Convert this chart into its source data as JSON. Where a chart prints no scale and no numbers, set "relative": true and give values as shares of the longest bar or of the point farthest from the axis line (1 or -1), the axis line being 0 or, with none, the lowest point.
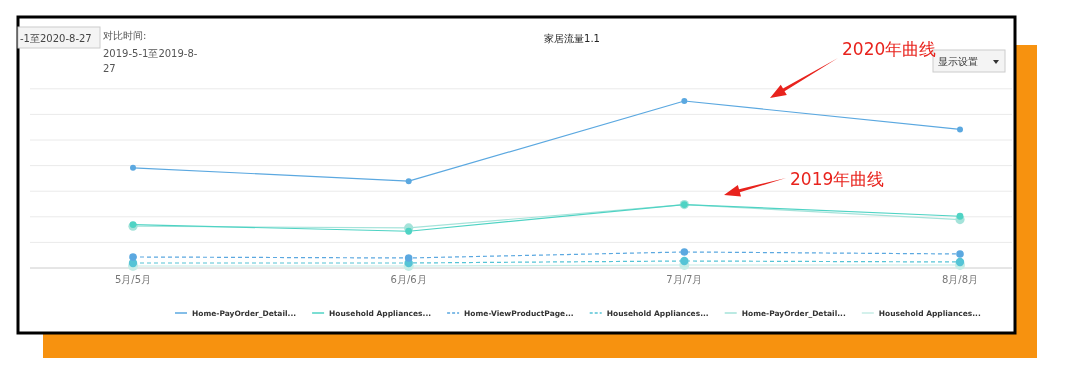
{
  "chart_data": {
    "type": "line",
    "title": "家居流量1.1",
    "relative": true,
    "grid": "y",
    "legend": "bottom",
    "marker": "circle",
    "categories": [
      "5月/5月",
      "6月/6月",
      "7月/7月",
      "8月/8月"
    ],
    "series": [
      {
        "name": "Home-PayOrder_Detail...",
        "color": "#5ba8e0",
        "line_style": "solid",
        "values": [
          0.6,
          0.52,
          1,
          0.83
        ]
      },
      {
        "name": "Household Appliances...",
        "color": "#4fd3c4",
        "line_style": "solid",
        "values": [
          0.26,
          0.22,
          0.38,
          0.31
        ]
      },
      {
        "name": "Home-ViewProductPage...",
        "color": "#5ba8e0",
        "line_style": "dashed",
        "values": [
          0.066,
          0.06,
          0.096,
          0.084
        ]
      },
      {
        "name": "Household Appliances...",
        "color": "#55c4d6",
        "line_style": "dashed",
        "values": [
          0.03,
          0.03,
          0.042,
          0.036
        ]
      },
      {
        "name": "Home-PayOrder_Detail...",
        "color": "#a5e3da",
        "line_style": "solid",
        "values": [
          0.25,
          0.24,
          0.38,
          0.29
        ]
      },
      {
        "name": "Household Appliances...",
        "color": "#c6ece6",
        "line_style": "solid",
        "values": [
          0.012,
          0.012,
          0.018,
          0.018
        ]
      }
    ],
    "annotations": [
      "-1至2020-8-27",
      "对比时间:",
      "2019-5-1至2019-8-27",
      "显示设置",
      "2020年曲线",
      "2019年曲线"
    ]
  }
}
